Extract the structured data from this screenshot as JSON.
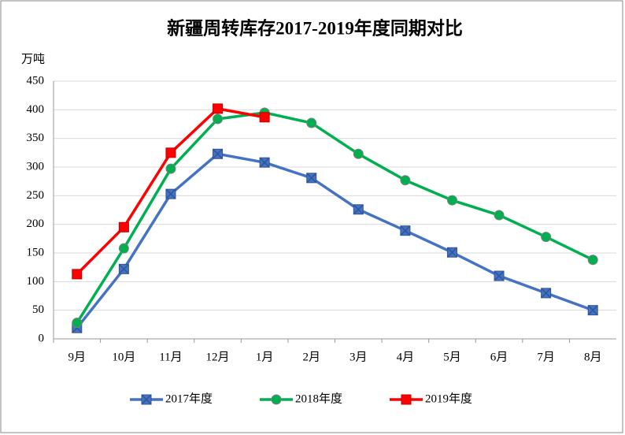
{
  "chart_data": {
    "type": "line",
    "title": "新疆周转库存2017-2019年度同期对比",
    "y_label": "万吨",
    "categories": [
      "9月",
      "10月",
      "11月",
      "12月",
      "1月",
      "2月",
      "3月",
      "4月",
      "5月",
      "6月",
      "7月",
      "8月"
    ],
    "series": [
      {
        "name": "2017年度",
        "color": "#4472c4",
        "marker": "x-square",
        "values": [
          19,
          122,
          253,
          323,
          308,
          281,
          226,
          189,
          151,
          110,
          80,
          50
        ]
      },
      {
        "name": "2018年度",
        "color": "#00b050",
        "marker": "circle",
        "values": [
          28,
          158,
          297,
          384,
          395,
          377,
          323,
          277,
          242,
          216,
          178,
          138
        ]
      },
      {
        "name": "2019年度",
        "color": "#ff0000",
        "marker": "square",
        "values": [
          113,
          195,
          325,
          402,
          387,
          null,
          null,
          null,
          null,
          null,
          null,
          null
        ]
      }
    ],
    "ylim": [
      0,
      450
    ],
    "yticks": [
      0,
      50,
      100,
      150,
      200,
      250,
      300,
      350,
      400,
      450
    ],
    "grid": true,
    "legend": "bottom"
  }
}
